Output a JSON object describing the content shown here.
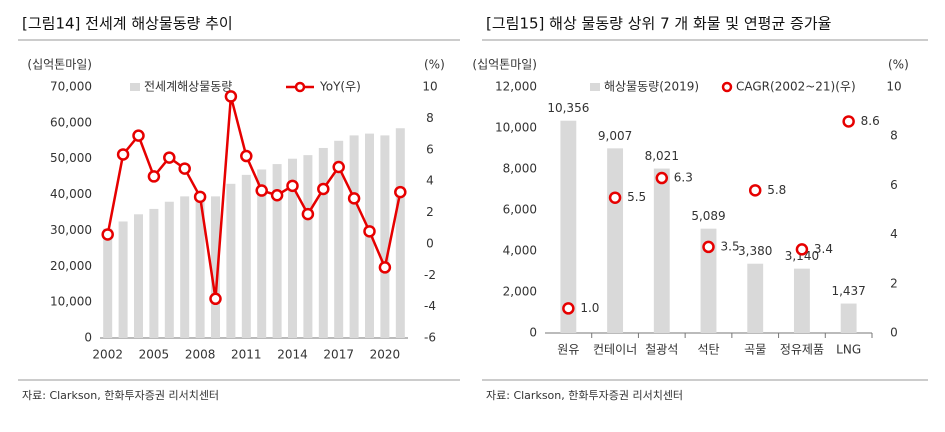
{
  "chart_data": [
    {
      "type": "combo",
      "title": "[그림14]  전세계 해상물동량 추이",
      "ylabel": "(십억톤마일)",
      "y2label": "(%)",
      "source": "자료: Clarkson, 한화투자증권 리서치센터",
      "x": [
        2002,
        2003,
        2004,
        2005,
        2006,
        2007,
        2008,
        2009,
        2010,
        2011,
        2012,
        2013,
        2014,
        2015,
        2016,
        2017,
        2018,
        2019,
        2020,
        2021
      ],
      "xlim": [
        2001.5,
        2021.5
      ],
      "xticks": [
        2002,
        2005,
        2008,
        2011,
        2014,
        2017,
        2020
      ],
      "ylim": [
        0,
        70000
      ],
      "yticks": [
        0,
        {
          "value": 10000,
          "label": "10,000"
        },
        {
          "value": 20000,
          "label": "20,000"
        },
        {
          "value": 30000,
          "label": "30,000"
        },
        {
          "value": 40000,
          "label": "40,000"
        },
        {
          "value": 50000,
          "label": "50,000"
        },
        {
          "value": 60000,
          "label": "60,000"
        },
        {
          "value": 70000,
          "label": "70,000"
        }
      ],
      "y2lim": [
        -6,
        10
      ],
      "y2ticks": [
        -6,
        -4,
        -2,
        0,
        2,
        4,
        6,
        8,
        10
      ],
      "legend": "top",
      "series": [
        {
          "name": "전세계해상물동량",
          "style": "bar",
          "color": "#d9d9d9",
          "values": [
            30500,
            32500,
            34500,
            36000,
            38000,
            39500,
            40500,
            39500,
            43000,
            45500,
            47000,
            48500,
            50000,
            51000,
            53000,
            55000,
            56500,
            57000,
            56500,
            58500
          ]
        },
        {
          "name": "YoY(우)",
          "style": "line",
          "axis": "y2",
          "color": "#e60000",
          "values": [
            0.6,
            5.7,
            6.9,
            4.3,
            5.5,
            4.8,
            3.0,
            -3.5,
            9.4,
            5.6,
            3.4,
            3.1,
            3.7,
            1.9,
            3.5,
            4.9,
            2.9,
            0.8,
            -1.5,
            3.3
          ]
        }
      ]
    },
    {
      "type": "combo",
      "title": "[그림15]  해상 물동량 상위 7 개 화물 및 연평균 증가율",
      "ylabel": "(십억톤마일)",
      "y2label": "(%)",
      "source": "자료: Clarkson, 한화투자증권 리서치센터",
      "categories": [
        "원유",
        "컨테이너",
        "철광석",
        "석탄",
        "곡물",
        "정유제품",
        "LNG"
      ],
      "ylim": [
        0,
        12000
      ],
      "yticks": [
        0,
        {
          "value": 2000,
          "label": "2,000"
        },
        {
          "value": 4000,
          "label": "4,000"
        },
        {
          "value": 6000,
          "label": "6,000"
        },
        {
          "value": 8000,
          "label": "8,000"
        },
        {
          "value": 10000,
          "label": "10,000"
        },
        {
          "value": 12000,
          "label": "12,000"
        }
      ],
      "y2lim": [
        0,
        10
      ],
      "y2ticks": [
        0,
        2,
        4,
        6,
        8,
        10
      ],
      "legend": "top",
      "series": [
        {
          "name": "해상물동량(2019)",
          "style": "bar",
          "color": "#d9d9d9",
          "values": [
            10356,
            9007,
            8021,
            5089,
            3380,
            3140,
            1437
          ],
          "value_labels": [
            "10,356",
            "9,007",
            "8,021",
            "5,089",
            "3,380",
            "3,140",
            "1,437"
          ]
        },
        {
          "name": "CAGR(2002~21)(우)",
          "style": "points",
          "axis": "y2",
          "color": "#e60000",
          "values": [
            1.0,
            5.5,
            6.3,
            3.5,
            5.8,
            3.4,
            8.6
          ],
          "value_labels": [
            "1.0",
            "5.5",
            "6.3",
            "3.5",
            "5.8",
            "3.4",
            "8.6"
          ]
        }
      ]
    }
  ]
}
